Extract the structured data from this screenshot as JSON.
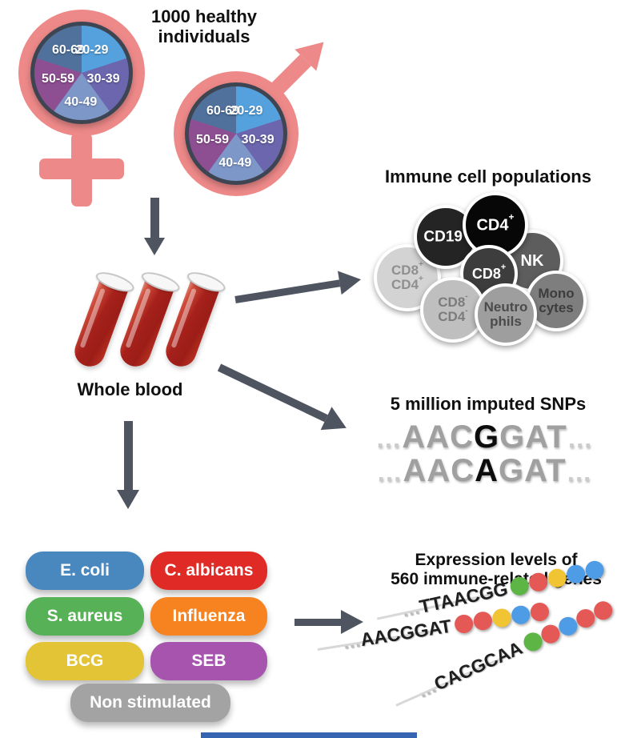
{
  "header": {
    "title_line1": "1000 healthy",
    "title_line2": "individuals"
  },
  "demographics": {
    "age_groups": [
      {
        "label": "20-29",
        "color": "#55a1dd"
      },
      {
        "label": "30-39",
        "color": "#6b66ad"
      },
      {
        "label": "40-49",
        "color": "#7e97c9"
      },
      {
        "label": "50-59",
        "color": "#8d4f92"
      },
      {
        "label": "60-69",
        "color": "#50719b"
      }
    ],
    "gender_symbol_color": "#ee8989",
    "pie_border_color": "#3e4552"
  },
  "blood": {
    "label": "Whole blood",
    "tube_count": 3,
    "blood_color": "#a6211b"
  },
  "immune_cells": {
    "title": "Immune cell populations",
    "cells": {
      "cd19": {
        "base": "CD19",
        "sup": "+",
        "bg": "#242424",
        "fg": "#ffffff"
      },
      "cd4": {
        "base": "CD4",
        "sup": "+",
        "bg": "#070707",
        "fg": "#ffffff"
      },
      "nk": {
        "base": "NK",
        "bg": "#5d5d5d",
        "fg": "#ffffff"
      },
      "cd8": {
        "base": "CD8",
        "sup": "+",
        "bg": "#3d3d3d",
        "fg": "#ffffff"
      },
      "cd8pos_cd4pos": {
        "line1_base": "CD8",
        "line1_sup": "+",
        "line2_base": "CD4",
        "line2_sup": "+",
        "bg": "#d3d3d3",
        "fg": "#8f8f8f"
      },
      "cd8neg_cd4neg": {
        "line1_base": "CD8",
        "line1_sup": "-",
        "line2_base": "CD4",
        "line2_sup": "-",
        "bg": "#bfbfbf",
        "fg": "#7c7c7c"
      },
      "neutrophils": {
        "line1": "Neutro",
        "line2": "phils",
        "bg": "#9e9e9e",
        "fg": "#4b4b4b"
      },
      "monocytes": {
        "line1": "Mono",
        "line2": "cytes",
        "bg": "#7e7e7e",
        "fg": "#3d3d3d"
      }
    }
  },
  "snps": {
    "title": "5 million imputed SNPs",
    "sequences": [
      {
        "ellipsis_left": "…",
        "prefix": "AAC",
        "variant": "G",
        "suffix": "GAT",
        "ellipsis_right": "…"
      },
      {
        "ellipsis_left": "…",
        "prefix": "AAC",
        "variant": "A",
        "suffix": "GAT",
        "ellipsis_right": "…"
      }
    ]
  },
  "stimuli": {
    "items": [
      {
        "label": "E. coli",
        "color": "#4888bf"
      },
      {
        "label": "C. albicans",
        "color": "#e02a26"
      },
      {
        "label": "S. aureus",
        "color": "#57b257"
      },
      {
        "label": "Influenza",
        "color": "#f6831f"
      },
      {
        "label": "BCG",
        "color": "#e3c437"
      },
      {
        "label": "SEB",
        "color": "#a654ad"
      },
      {
        "label": "Non stimulated",
        "color": "#a3a3a3"
      }
    ]
  },
  "expression": {
    "title_line1": "Expression levels of",
    "title_line2": "560 immune-related genes",
    "genes": [
      {
        "ellipsis": "…",
        "sequence": "TTAACGG",
        "dots": [
          "green",
          "red",
          "yellow",
          "blue",
          "blue"
        ]
      },
      {
        "ellipsis": "…",
        "sequence": "AACGGAT",
        "dots": [
          "red",
          "red",
          "yellow",
          "blue",
          "red"
        ]
      },
      {
        "ellipsis": "…",
        "sequence": "CACGCAA",
        "dots": [
          "green",
          "red",
          "blue",
          "red",
          "red"
        ]
      }
    ],
    "dot_palette": {
      "green": "#5cb544",
      "red": "#e45955",
      "yellow": "#f1c433",
      "blue": "#4e9ce6"
    }
  },
  "arrows": {
    "color": "#4e5560"
  },
  "footer_bar": {
    "color": "#3565b0"
  }
}
